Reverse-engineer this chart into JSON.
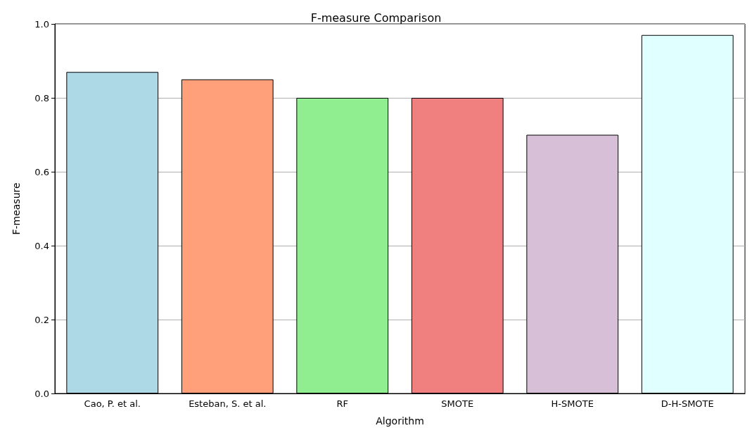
{
  "chart_data": {
    "type": "bar",
    "title": "F-measure Comparison",
    "xlabel": "Algorithm",
    "ylabel": "F-measure",
    "categories": [
      "Cao, P. et al.",
      "Esteban, S. et al.",
      "RF",
      "SMOTE",
      "H-SMOTE",
      "D-H-SMOTE"
    ],
    "values": [
      0.87,
      0.85,
      0.8,
      0.8,
      0.7,
      0.97
    ],
    "colors": [
      "#add8e6",
      "#ffa07a",
      "#90ee90",
      "#f08080",
      "#d8bfd8",
      "#e0ffff"
    ],
    "ylim": [
      0,
      1
    ],
    "yticks": [
      {
        "value": 0,
        "label": "0.0"
      },
      0.2,
      0.4,
      0.6,
      0.8,
      {
        "value": 1,
        "label": "1.0"
      }
    ],
    "grid": "y"
  }
}
